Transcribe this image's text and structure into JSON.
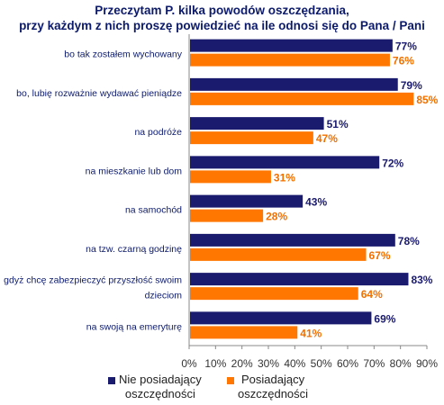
{
  "chart_data": {
    "type": "bar",
    "orientation": "horizontal",
    "title": [
      "Przeczytam P. kilka powodów oszczędzania,",
      "przy każdym z nich proszę powiedzieć na ile odnosi się do Pana / Pani"
    ],
    "categories": [
      [
        "bo tak zostałem wychowany"
      ],
      [
        "bo, lubię rozważnie wydawać pieniądze"
      ],
      [
        "na podróże"
      ],
      [
        "na mieszkanie lub dom"
      ],
      [
        "na samochód"
      ],
      [
        "na tzw. czarną godzinę"
      ],
      [
        "gdyż chcę zabezpieczyć przyszłość swoim",
        "dzieciom"
      ],
      [
        "na swoją na emeryturę"
      ]
    ],
    "series": [
      {
        "name": "Nie posiadający oszczędności",
        "legend_lines": [
          "Nie posiadający",
          "oszczędności"
        ],
        "color": "#1a1a6e",
        "label_color": "#1a1a6e",
        "values": [
          77,
          79,
          51,
          72,
          43,
          78,
          83,
          69
        ],
        "labels": [
          "77%",
          "79%",
          "51%",
          "72%",
          "43%",
          "78%",
          "83%",
          "69%"
        ]
      },
      {
        "name": "Posiadający oszczędności",
        "legend_lines": [
          "Posiadający",
          "oszczędności"
        ],
        "color": "#ff7700",
        "label_color": "#f07000",
        "values": [
          76,
          85,
          47,
          31,
          28,
          67,
          64,
          41
        ],
        "labels": [
          "76%",
          "85%",
          "47%",
          "31%",
          "28%",
          "67%",
          "64%",
          "41%"
        ]
      }
    ],
    "xlim": [
      0,
      90
    ],
    "xticks": [
      "0%",
      "10%",
      "20%",
      "30%",
      "40%",
      "50%",
      "60%",
      "70%",
      "80%",
      "90%"
    ],
    "grid": false,
    "legend_position": "bottom"
  }
}
